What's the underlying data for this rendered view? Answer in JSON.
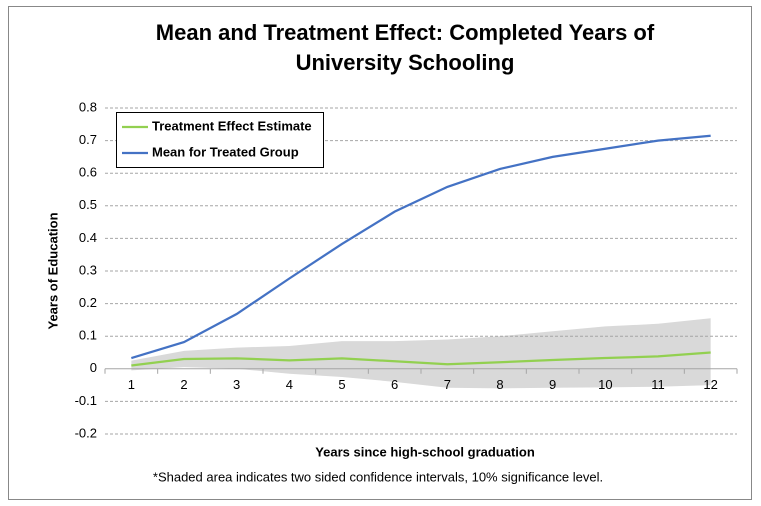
{
  "chart_data": {
    "type": "line",
    "title": [
      "Mean and Treatment Effect: Completed Years of",
      "University Schooling"
    ],
    "x_label": "Years since high-school graduation",
    "y_label": "Years of Education",
    "note": "*Shaded area indicates two sided confidence intervals, 10% significance level.",
    "categories": [
      "1",
      "2",
      "3",
      "4",
      "5",
      "6",
      "7",
      "8",
      "9",
      "10",
      "11",
      "12"
    ],
    "series": [
      {
        "name": "Treatment Effect Estimate",
        "color": "#92d050",
        "values": [
          0.01,
          0.03,
          0.032,
          0.026,
          0.032,
          0.023,
          0.014,
          0.02,
          0.027,
          0.033,
          0.038,
          0.05
        ]
      },
      {
        "name": "Mean for Treated Group",
        "color": "#4472c4",
        "values": [
          0.033,
          0.082,
          0.168,
          0.277,
          0.383,
          0.482,
          0.558,
          0.613,
          0.65,
          0.675,
          0.7,
          0.715
        ]
      }
    ],
    "band": {
      "color": "#d9d9d9",
      "upper": [
        0.025,
        0.055,
        0.065,
        0.07,
        0.085,
        0.085,
        0.09,
        0.1,
        0.115,
        0.13,
        0.138,
        0.155
      ],
      "lower": [
        -0.005,
        0.005,
        0.0,
        -0.015,
        -0.025,
        -0.04,
        -0.058,
        -0.06,
        -0.058,
        -0.057,
        -0.055,
        -0.05
      ]
    },
    "ylim": [
      -0.2,
      0.8
    ],
    "yticks": [
      -0.2,
      -0.1,
      0,
      0.1,
      0.2,
      0.3,
      0.4,
      0.5,
      0.6,
      0.7,
      0.8
    ],
    "grid": true,
    "legend": "upper left"
  }
}
